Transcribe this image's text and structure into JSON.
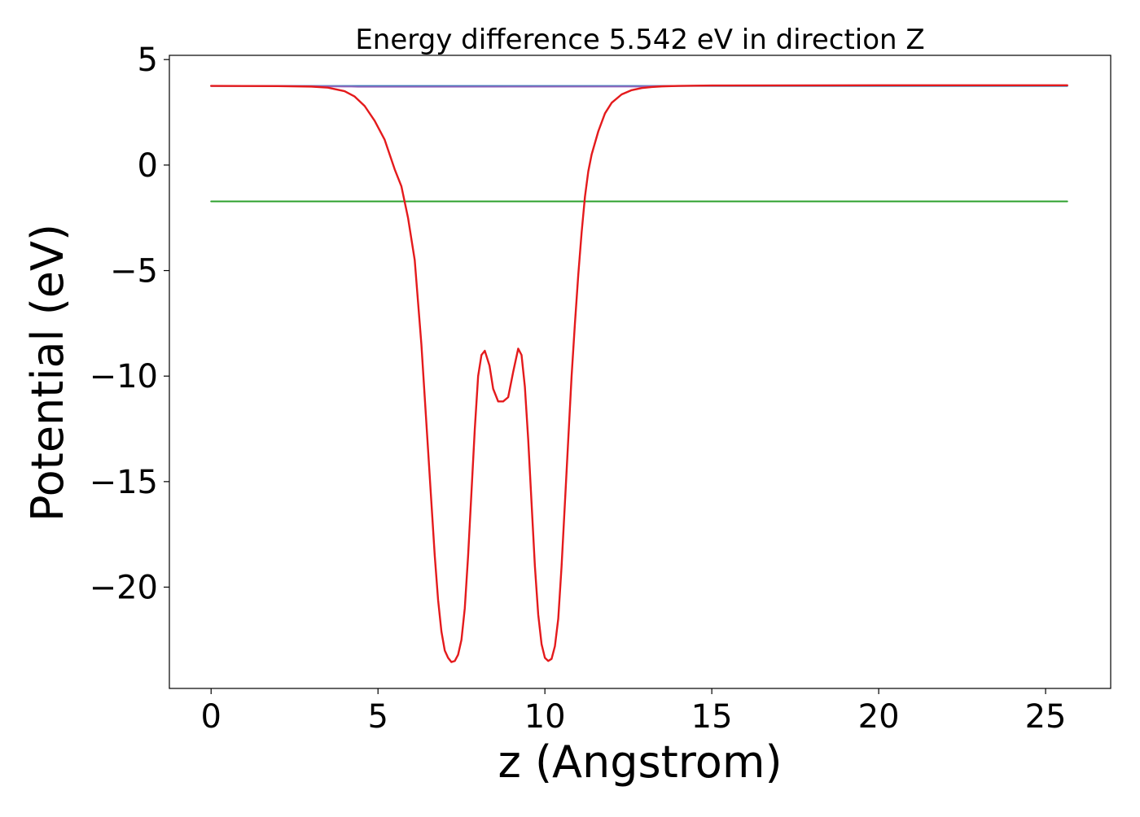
{
  "chart_data": {
    "type": "line",
    "title": "Energy difference 5.542 eV in direction Z",
    "xlabel": "z (Angstrom)",
    "ylabel": "Potential (eV)",
    "xlim": [
      -1.25,
      26.95
    ],
    "ylim": [
      -24.8,
      5.2
    ],
    "xticks": [
      0,
      5,
      10,
      15,
      20,
      25
    ],
    "yticks": [
      5,
      0,
      -5,
      -10,
      -15,
      -20
    ],
    "xtick_labels": [
      "0",
      "5",
      "10",
      "15",
      "20",
      "25"
    ],
    "ytick_labels": [
      "5",
      "0",
      "−5",
      "−10",
      "−15",
      "−20"
    ],
    "grid": false,
    "legend": "none",
    "series": [
      {
        "color": "#1f77b4",
        "x": [
          0,
          25.65
        ],
        "y": [
          3.75,
          3.75
        ]
      },
      {
        "color": "#2ca02c",
        "x": [
          0,
          25.65
        ],
        "y": [
          -1.72,
          -1.72
        ]
      },
      {
        "color": "#9467bd",
        "x": [
          0,
          1,
          2,
          3,
          3.5,
          4,
          4.2,
          4.4,
          12.8,
          13,
          13.5,
          14,
          15,
          20,
          25.65
        ],
        "y": [
          3.75,
          3.75,
          3.75,
          3.74,
          3.73,
          3.72,
          3.72,
          3.71,
          3.72,
          3.73,
          3.74,
          3.75,
          3.77,
          3.78,
          3.78
        ]
      },
      {
        "color": "#e41a1c",
        "x": [
          0,
          2,
          3,
          3.5,
          4,
          4.3,
          4.6,
          4.9,
          5.2,
          5.5,
          5.7,
          5.9,
          6.1,
          6.2,
          6.3,
          6.4,
          6.5,
          6.6,
          6.7,
          6.8,
          6.9,
          7.0,
          7.1,
          7.2,
          7.3,
          7.4,
          7.5,
          7.6,
          7.7,
          7.8,
          7.9,
          8.0,
          8.1,
          8.2,
          8.34,
          8.45,
          8.6,
          8.75,
          8.9,
          9.05,
          9.2,
          9.3,
          9.4,
          9.5,
          9.6,
          9.7,
          9.8,
          9.9,
          10.0,
          10.1,
          10.2,
          10.3,
          10.4,
          10.5,
          10.6,
          10.7,
          10.8,
          10.9,
          11.0,
          11.1,
          11.2,
          11.3,
          11.4,
          11.6,
          11.8,
          12.0,
          12.3,
          12.6,
          12.9,
          13.2,
          13.5,
          14.0,
          15.0,
          20.0,
          25.65
        ],
        "y": [
          3.75,
          3.74,
          3.72,
          3.67,
          3.5,
          3.25,
          2.8,
          2.1,
          1.2,
          -0.2,
          -1.0,
          -2.5,
          -4.5,
          -6.5,
          -8.5,
          -11.0,
          -13.5,
          -16.0,
          -18.5,
          -20.6,
          -22.1,
          -23.0,
          -23.35,
          -23.55,
          -23.5,
          -23.2,
          -22.5,
          -21.0,
          -18.5,
          -15.5,
          -12.5,
          -10.0,
          -9.0,
          -8.8,
          -9.5,
          -10.6,
          -11.2,
          -11.2,
          -11.0,
          -9.8,
          -8.7,
          -9.0,
          -10.5,
          -13.0,
          -16.0,
          -19.0,
          -21.3,
          -22.7,
          -23.35,
          -23.5,
          -23.4,
          -22.8,
          -21.5,
          -19.0,
          -16.0,
          -13.0,
          -10.0,
          -7.5,
          -5.2,
          -3.2,
          -1.5,
          -0.3,
          0.5,
          1.6,
          2.45,
          2.95,
          3.35,
          3.55,
          3.65,
          3.7,
          3.73,
          3.75,
          3.77,
          3.78,
          3.78
        ]
      }
    ]
  }
}
